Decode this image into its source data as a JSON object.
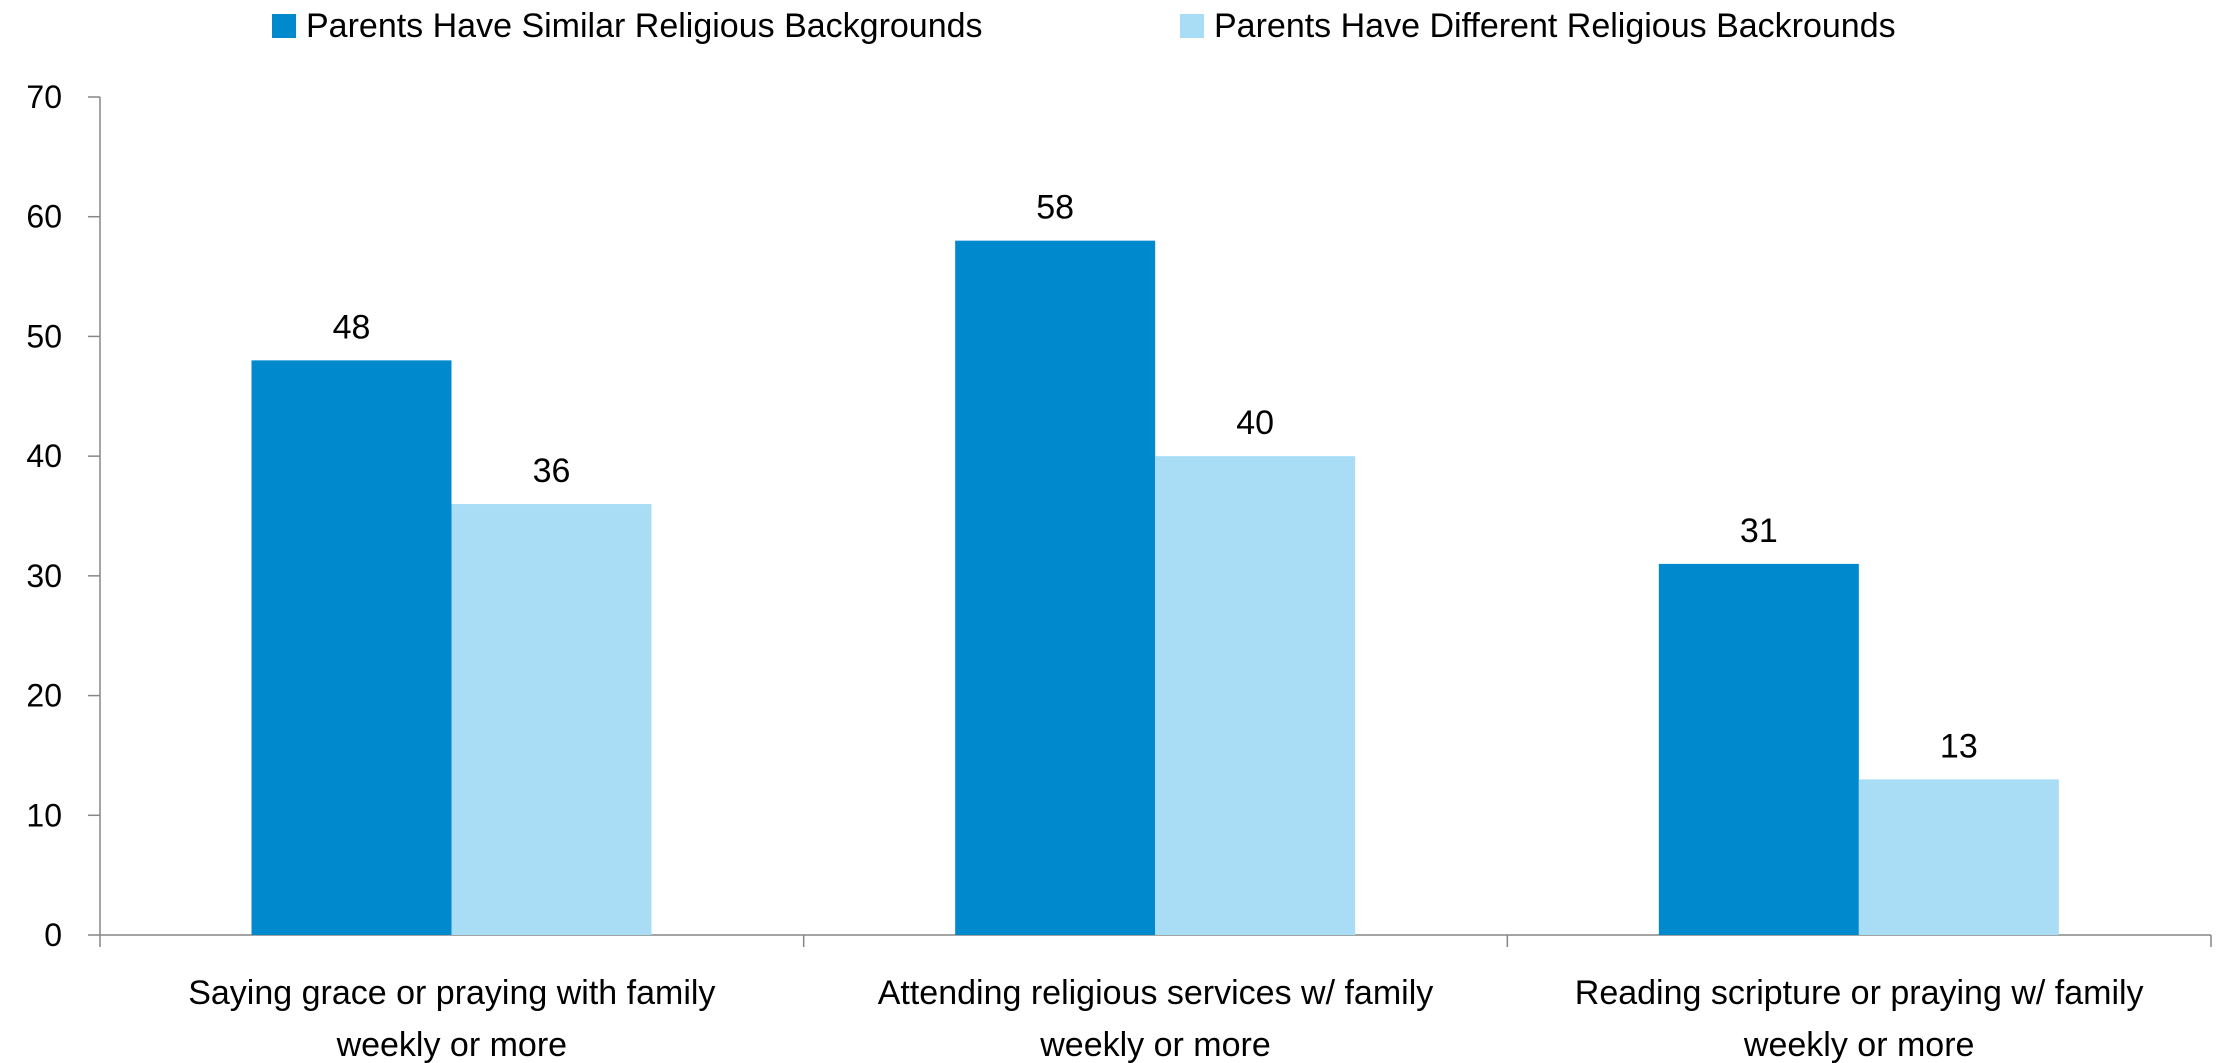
{
  "chart_data": {
    "type": "bar",
    "title": "",
    "xlabel": "",
    "ylabel": "",
    "ylim": [
      0,
      70
    ],
    "yticks": [
      0,
      10,
      20,
      30,
      40,
      50,
      60,
      70
    ],
    "grid": false,
    "legend_position": "top",
    "categories": [
      [
        "Saying grace or praying with family",
        "weekly or more"
      ],
      [
        "Attending religious services w/ family",
        "weekly or more"
      ],
      [
        "Reading scripture or praying w/ family",
        "weekly or more"
      ]
    ],
    "series": [
      {
        "name": "Parents Have Similar Religious Backgrounds",
        "color": "#0089CC",
        "values": [
          48,
          58,
          31
        ]
      },
      {
        "name": "Parents Have Different Religious Backrounds",
        "color": "#A8DDF5",
        "values": [
          36,
          40,
          13
        ]
      }
    ]
  }
}
